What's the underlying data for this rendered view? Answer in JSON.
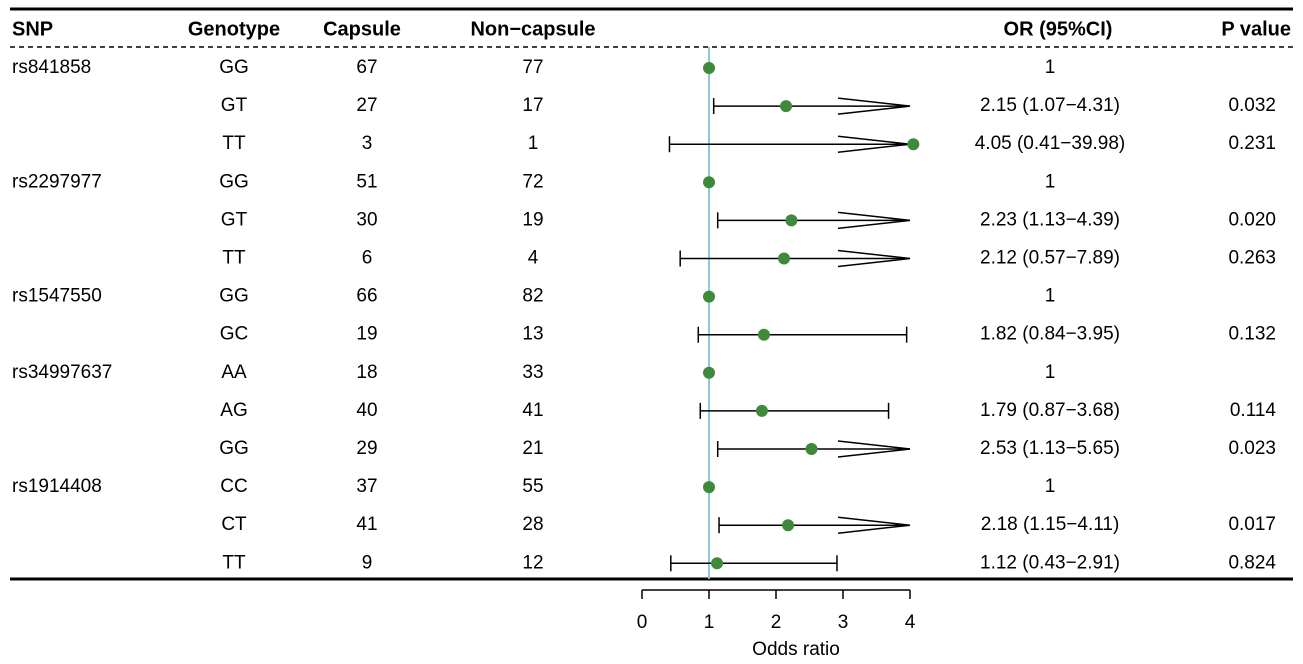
{
  "chart_data": {
    "type": "forest",
    "columns": [
      "SNP",
      "Genotype",
      "Capsule",
      "Non−capsule",
      "OR (95%CI)",
      "P value"
    ],
    "snp": [
      "rs841858",
      null,
      null,
      "rs2297977",
      null,
      null,
      "rs1547550",
      null,
      "rs34997637",
      null,
      null,
      "rs1914408",
      null,
      null
    ],
    "genotype": [
      "GG",
      "GT",
      "TT",
      "GG",
      "GT",
      "TT",
      "GG",
      "GC",
      "AA",
      "AG",
      "GG",
      "CC",
      "CT",
      "TT"
    ],
    "capsule": [
      67,
      27,
      3,
      51,
      30,
      6,
      66,
      19,
      18,
      40,
      29,
      37,
      41,
      9
    ],
    "non_capsule": [
      77,
      17,
      1,
      72,
      19,
      4,
      82,
      13,
      33,
      41,
      21,
      55,
      28,
      12
    ],
    "or": [
      1,
      2.15,
      4.05,
      1,
      2.23,
      2.12,
      1,
      1.82,
      1,
      1.79,
      2.53,
      1,
      2.18,
      1.12
    ],
    "lower": [
      null,
      1.07,
      0.41,
      null,
      1.13,
      0.57,
      null,
      0.84,
      null,
      0.87,
      1.13,
      null,
      1.15,
      0.43
    ],
    "upper": [
      null,
      4.31,
      39.98,
      null,
      4.39,
      7.89,
      null,
      3.95,
      null,
      3.68,
      5.65,
      null,
      4.11,
      2.91
    ],
    "or_labels": [
      "1",
      "2.15 (1.07−4.31)",
      "4.05 (0.41−39.98)",
      "1",
      "2.23 (1.13−4.39)",
      "2.12 (0.57−7.89)",
      "1",
      "1.82 (0.84−3.95)",
      "1",
      "1.79 (0.87−3.68)",
      "2.53 (1.13−5.65)",
      "1",
      "2.18 (1.15−4.11)",
      "1.12 (0.43−2.91)"
    ],
    "p_labels": [
      null,
      "0.032",
      "0.231",
      null,
      "0.020",
      "0.263",
      null,
      "0.132",
      null,
      "0.114",
      "0.023",
      null,
      "0.017",
      "0.824"
    ],
    "show_or": [
      false,
      true,
      true,
      false,
      true,
      true,
      false,
      true,
      false,
      true,
      true,
      false,
      true,
      true
    ],
    "xlabel": "Odds ratio",
    "xlim": [
      0,
      4
    ],
    "xticks": [
      0,
      1,
      2,
      3,
      4
    ],
    "ref_line": 1,
    "ref_color": "#8cc8dc",
    "point_color": "#3f8a3a"
  }
}
